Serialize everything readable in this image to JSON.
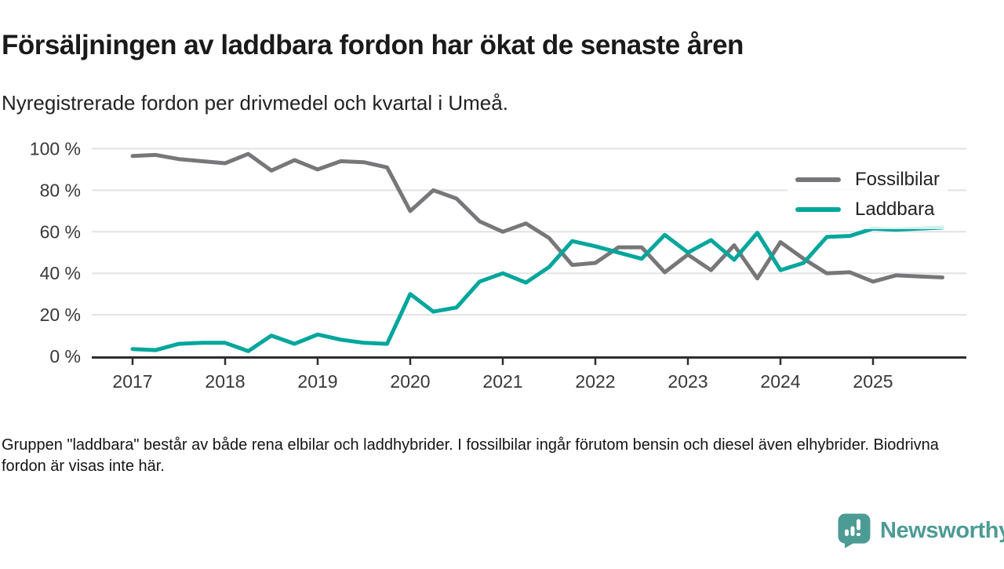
{
  "header": {
    "title": "Försäljningen av laddbara fordon har ökat de senaste åren",
    "subtitle": "Nyregistrerade fordon per drivmedel och kvartal i Umeå."
  },
  "chart_data": {
    "type": "line",
    "title": "",
    "xlabel": "",
    "ylabel": "",
    "ylim": [
      0,
      100
    ],
    "grid": true,
    "legend_position": "top-right",
    "y_ticks": [
      0,
      20,
      40,
      60,
      80,
      100
    ],
    "y_tick_labels": [
      "0 %",
      "20 %",
      "40 %",
      "60 %",
      "80 %",
      "100 %"
    ],
    "x_tick_labels": [
      "2017",
      "2018",
      "2019",
      "2020",
      "2021",
      "2022",
      "2023",
      "2024",
      "2025"
    ],
    "x": [
      "2017Q1",
      "2017Q2",
      "2017Q3",
      "2017Q4",
      "2018Q1",
      "2018Q2",
      "2018Q3",
      "2018Q4",
      "2019Q1",
      "2019Q2",
      "2019Q3",
      "2019Q4",
      "2020Q1",
      "2020Q2",
      "2020Q3",
      "2020Q4",
      "2021Q1",
      "2021Q2",
      "2021Q3",
      "2021Q4",
      "2022Q1",
      "2022Q2",
      "2022Q3",
      "2022Q4",
      "2023Q1",
      "2023Q2",
      "2023Q3",
      "2023Q4",
      "2024Q1",
      "2024Q2",
      "2024Q3",
      "2024Q4",
      "2025Q1",
      "2025Q2",
      "2025Q3",
      "2025Q4"
    ],
    "series": [
      {
        "name": "Fossilbilar",
        "color": "#77777a",
        "values": [
          96.5,
          97,
          95,
          94,
          93,
          97.5,
          89.5,
          94.5,
          90,
          94,
          93.5,
          91,
          70,
          80,
          76,
          65,
          60,
          64,
          57,
          44,
          45,
          52.5,
          52.5,
          40.5,
          49,
          41.5,
          53.5,
          37.5,
          55,
          47,
          40,
          40.5,
          36,
          39,
          38.5,
          38
        ]
      },
      {
        "name": "Laddbara",
        "color": "#00a69c",
        "values": [
          3.5,
          3,
          6,
          6.5,
          6.5,
          2.5,
          10,
          6,
          10.5,
          8,
          6.5,
          6,
          30,
          21.5,
          23.5,
          36,
          40,
          35.5,
          43,
          55.5,
          53,
          50,
          47,
          58.5,
          50,
          56,
          46.5,
          59.5,
          41.5,
          45,
          57.5,
          58,
          61.5,
          61,
          61.5,
          62
        ]
      }
    ]
  },
  "footer": {
    "note": "Gruppen \"laddbara\" består av både rena elbilar och laddhybrider. I fossilbilar ingår förutom bensin och diesel även elhybrider. Biodrivna fordon är visas inte här."
  },
  "branding": {
    "logo_text": "Newsworthy",
    "logo_color": "#4d9b95"
  }
}
